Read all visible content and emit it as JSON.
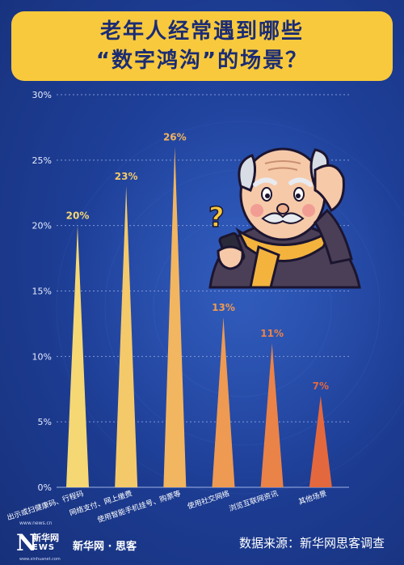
{
  "title": {
    "line1": "老年人经常遇到哪些",
    "line2": "“数字鸿沟”的场景？"
  },
  "chart_data": {
    "type": "bar",
    "categories": [
      "出示或扫健康码、行程码",
      "网络支付、网上缴费",
      "使用智能手机挂号、购票等",
      "使用社交网络",
      "浏览互联网资讯",
      "其他场景"
    ],
    "values": [
      20,
      23,
      26,
      13,
      11,
      7
    ],
    "value_labels": [
      "20%",
      "23%",
      "26%",
      "13%",
      "11%",
      "7%"
    ],
    "y_ticks": [
      "0%",
      "5%",
      "10%",
      "15%",
      "20%",
      "25%",
      "30%"
    ],
    "ylim": [
      0,
      30
    ],
    "grid": true,
    "bar_style": "tapered-spike",
    "colors": [
      "#f5d774",
      "#f4c96a",
      "#f2b560",
      "#ee9a52",
      "#ea8348",
      "#e4683e"
    ]
  },
  "footer": {
    "brand": "新华网 · 思客",
    "source": "数据来源：新华网思客调查",
    "logo_n": "N",
    "logo_cn": "新华网",
    "logo_ws": "EWS",
    "url_top": "www.news.cn",
    "url_bottom": "www.xinhuanet.com"
  },
  "illustration": {
    "subject": "worried-elderly-man-with-phone",
    "question_mark": "?"
  }
}
